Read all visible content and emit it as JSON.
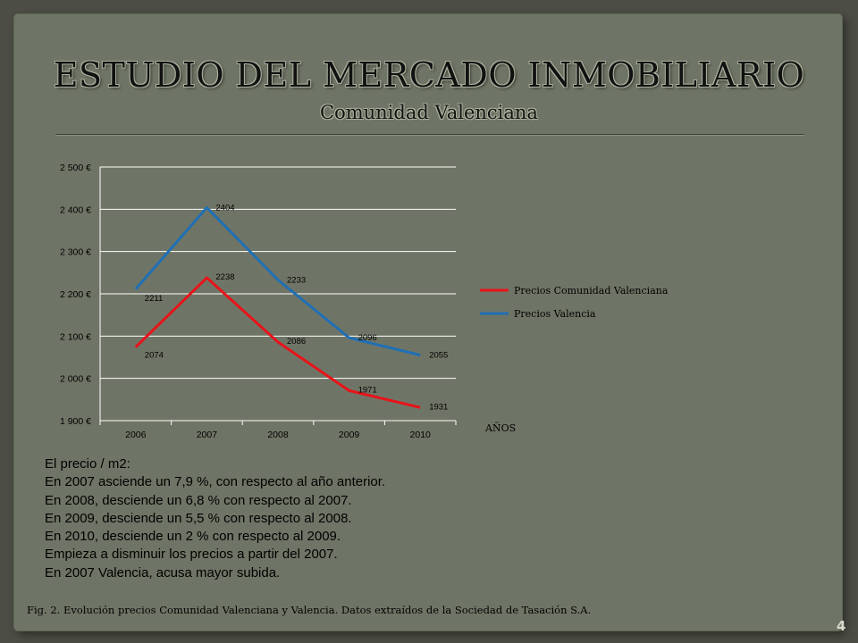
{
  "header": {
    "title": "ESTUDIO DEL MERCADO INMOBILIARIO",
    "subtitle": "Comunidad Valenciana"
  },
  "chart_data": {
    "type": "line",
    "categories": [
      "2006",
      "2007",
      "2008",
      "2009",
      "2010"
    ],
    "xlabel": "AÑOS",
    "ylabel": "",
    "ylim": [
      1900,
      2500
    ],
    "yticks": [
      "1 900 €",
      "2 000 €",
      "2 100 €",
      "2 200 €",
      "2 300 €",
      "2 400 €",
      "2 500 €"
    ],
    "ytick_values": [
      1900,
      2000,
      2100,
      2200,
      2300,
      2400,
      2500
    ],
    "grid": true,
    "legend_position": "right",
    "series": [
      {
        "name": "Precios Comunidad Valenciana",
        "color": "#e8131a",
        "values": [
          2074,
          2238,
          2086,
          1971,
          1931
        ]
      },
      {
        "name": "Precios Valencia",
        "color": "#1f6fb5",
        "values": [
          2211,
          2404,
          2233,
          2096,
          2055
        ]
      }
    ]
  },
  "notes": [
    "El precio / m2:",
    "En 2007 asciende un 7,9 %, con respecto al año anterior.",
    "En 2008, desciende un 6,8 % con respecto al 2007.",
    "En 2009, desciende un 5,5 % con respecto al 2008.",
    "En 2010, desciende un 2 % con respecto al 2009.",
    "Empieza a disminuir los precios a partir del 2007.",
    "En 2007 Valencia, acusa mayor subida."
  ],
  "caption": "Fig. 2. Evolución precios Comunidad Valenciana y Valencia. Datos extraídos de la Sociedad de Tasación S.A.",
  "page_number": "4"
}
